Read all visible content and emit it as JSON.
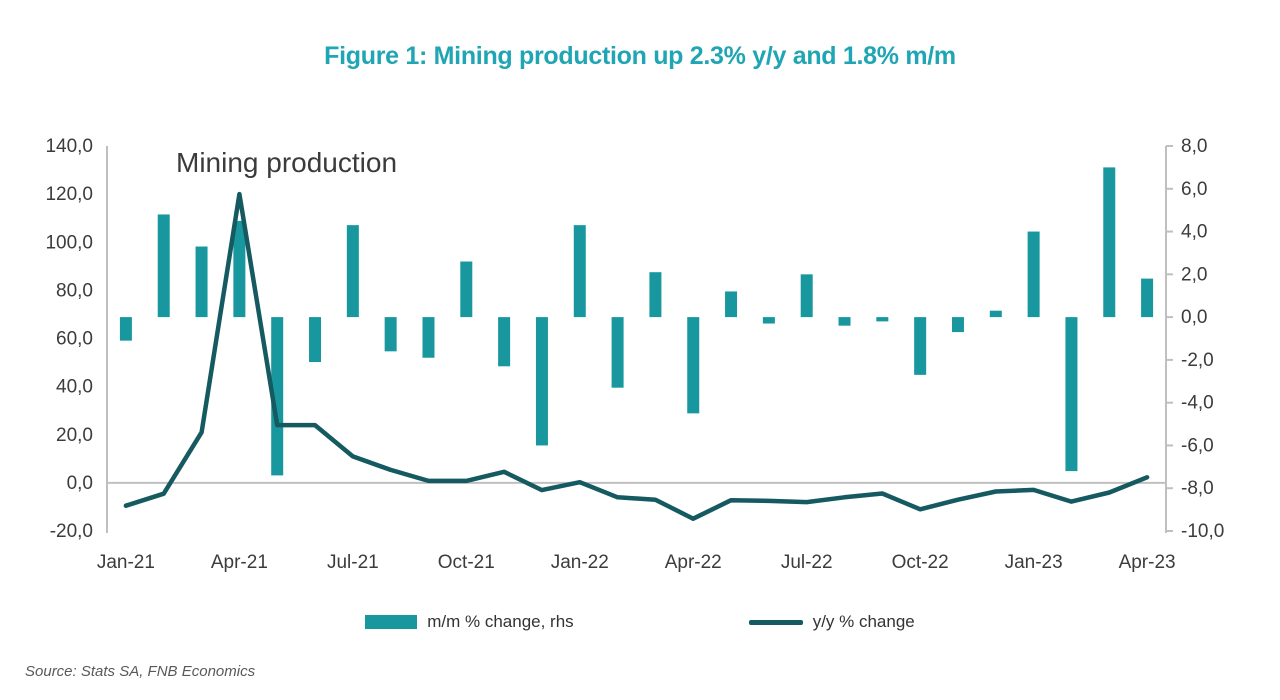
{
  "title": {
    "text": "Figure 1: Mining production up 2.3% y/y and 1.8% m/m"
  },
  "source": {
    "text": "Source: Stats SA, FNB Economics"
  },
  "legend": {
    "items": [
      {
        "label": "m/m % change, rhs",
        "swatch": "bar"
      },
      {
        "label": "y/y % change",
        "swatch": "line"
      }
    ]
  },
  "colors": {
    "title": "#1fa5b3",
    "bar": "#18989e",
    "line": "#155a60",
    "axis": "#bfbfbf",
    "zero_line": "#c0c0c0",
    "axis_text": "#3c3c3c",
    "inner_title_text": "#3b3b3b"
  },
  "chart_data": {
    "type": "combo-bar-line",
    "inner_title": "Mining production",
    "categories": [
      "Jan-21",
      "Feb-21",
      "Mar-21",
      "Apr-21",
      "May-21",
      "Jun-21",
      "Jul-21",
      "Aug-21",
      "Sep-21",
      "Oct-21",
      "Nov-21",
      "Dec-21",
      "Jan-22",
      "Feb-22",
      "Mar-22",
      "Apr-22",
      "May-22",
      "Jun-22",
      "Jul-22",
      "Aug-22",
      "Sep-22",
      "Oct-22",
      "Nov-22",
      "Dec-22",
      "Jan-23",
      "Feb-23",
      "Mar-23",
      "Apr-23"
    ],
    "series": [
      {
        "name": "m/m % change, rhs",
        "type": "bar",
        "axis": "right",
        "values": [
          -1.1,
          4.8,
          3.3,
          4.5,
          -7.4,
          -2.1,
          4.3,
          -1.6,
          -1.9,
          2.6,
          -2.3,
          -6.0,
          4.3,
          -3.3,
          2.1,
          -4.5,
          1.2,
          -0.3,
          2.0,
          -0.4,
          -0.2,
          -2.7,
          -0.7,
          0.3,
          4.0,
          -7.2,
          7.0,
          1.8
        ]
      },
      {
        "name": "y/y % change",
        "type": "line",
        "axis": "left",
        "values": [
          -9.5,
          -4.5,
          21.0,
          120.0,
          24.0,
          24.0,
          11.0,
          5.4,
          0.8,
          0.8,
          4.6,
          -3.0,
          0.3,
          -6.0,
          -7.0,
          -14.9,
          -7.2,
          -7.5,
          -8.0,
          -6.0,
          -4.4,
          -11.0,
          -7.0,
          -3.6,
          -2.9,
          -7.8,
          -4.0,
          2.3
        ]
      }
    ],
    "left_axis": {
      "max": 140,
      "min": -20,
      "ticks": [
        {
          "v": 140,
          "label": "140,0"
        },
        {
          "v": 120,
          "label": "120,0"
        },
        {
          "v": 100,
          "label": "100,0"
        },
        {
          "v": 80,
          "label": "80,0"
        },
        {
          "v": 60,
          "label": "60,0"
        },
        {
          "v": 40,
          "label": "40,0"
        },
        {
          "v": 20,
          "label": "20,0"
        },
        {
          "v": 0,
          "label": "0,0"
        },
        {
          "v": -20,
          "label": "-20,0"
        }
      ]
    },
    "right_axis": {
      "max": 8,
      "min": -10,
      "ticks": [
        {
          "v": 8,
          "label": "8,0"
        },
        {
          "v": 6,
          "label": "6,0"
        },
        {
          "v": 4,
          "label": "4,0"
        },
        {
          "v": 2,
          "label": "2,0"
        },
        {
          "v": 0,
          "label": "0,0"
        },
        {
          "v": -2,
          "label": "-2,0"
        },
        {
          "v": -4,
          "label": "-4,0"
        },
        {
          "v": -6,
          "label": "-6,0"
        },
        {
          "v": -8,
          "label": "-8,0"
        },
        {
          "v": -10,
          "label": "-10,0"
        }
      ]
    },
    "x_ticks": [
      {
        "i": 0,
        "label": "Jan-21"
      },
      {
        "i": 3,
        "label": "Apr-21"
      },
      {
        "i": 6,
        "label": "Jul-21"
      },
      {
        "i": 9,
        "label": "Oct-21"
      },
      {
        "i": 12,
        "label": "Jan-22"
      },
      {
        "i": 15,
        "label": "Apr-22"
      },
      {
        "i": 18,
        "label": "Jul-22"
      },
      {
        "i": 21,
        "label": "Oct-22"
      },
      {
        "i": 24,
        "label": "Jan-23"
      },
      {
        "i": 27,
        "label": "Apr-23"
      },
      {
        "i": 30,
        "label": ""
      }
    ],
    "grid": "off",
    "legend_position": "bottom-center"
  }
}
